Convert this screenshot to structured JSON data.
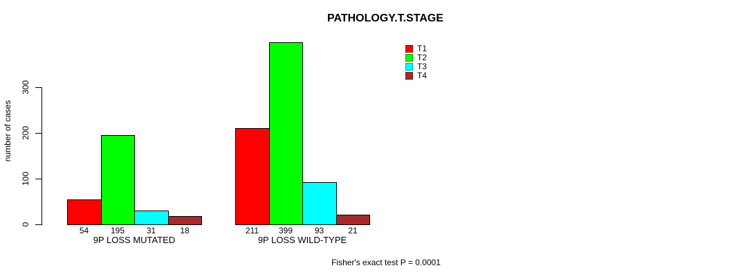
{
  "title": "PATHOLOGY.T.STAGE",
  "y_axis": {
    "label": "number of cases",
    "ticks": [
      0,
      100,
      200,
      300
    ]
  },
  "footer": "Fisher's exact test P = 0.0001",
  "chart_data": {
    "type": "bar",
    "title": "PATHOLOGY.T.STAGE",
    "xlabel": "",
    "ylabel": "number of cases",
    "categories": [
      "9P LOSS MUTATED",
      "9P LOSS WILD-TYPE"
    ],
    "series": [
      {
        "name": "T1",
        "color": "#FF0000",
        "values": [
          54,
          211
        ]
      },
      {
        "name": "T2",
        "color": "#00FF00",
        "values": [
          195,
          399
        ]
      },
      {
        "name": "T3",
        "color": "#00FFFF",
        "values": [
          31,
          93
        ]
      },
      {
        "name": "T4",
        "color": "#A52A2A",
        "values": [
          18,
          21
        ]
      }
    ],
    "yticks": [
      0,
      100,
      200,
      300
    ],
    "axis_range": [
      0,
      300
    ],
    "bar_value_labels_shown": true,
    "grid": false,
    "legend_position": "top-right",
    "annotation": "Fisher's exact test P = 0.0001"
  }
}
